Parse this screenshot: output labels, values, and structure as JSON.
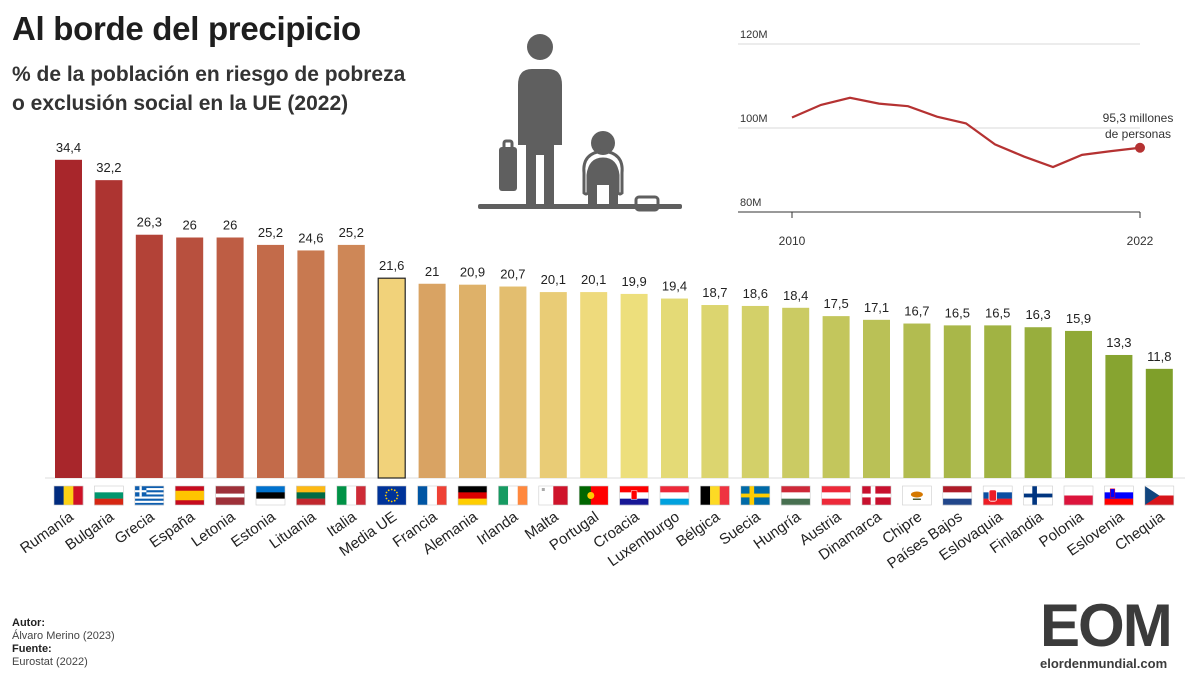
{
  "header": {
    "title": "Al borde del precipicio",
    "subtitle_line1": "% de la población en riesgo de pobreza",
    "subtitle_line2": "o exclusión social en la UE (2022)"
  },
  "credits": {
    "author_label": "Autor:",
    "author": "Álvaro Merino (2023)",
    "source_label": "Fuente:",
    "source": "Eurostat (2022)"
  },
  "logo": {
    "mark": "EOM",
    "url": "elordenmundial.com"
  },
  "colors": {
    "high": "#a8262b",
    "mid": "#f1e17f",
    "low": "#7f9f2a",
    "eu_average": "#f1d27a",
    "inset_line": "#b53232"
  },
  "chart_data": [
    {
      "type": "bar",
      "categories": [
        "Rumanía",
        "Bulgaria",
        "Grecia",
        "España",
        "Letonia",
        "Estonia",
        "Lituania",
        "Italia",
        "Media UE",
        "Francia",
        "Alemania",
        "Irlanda",
        "Malta",
        "Portugal",
        "Croacia",
        "Luxemburgo",
        "Bélgica",
        "Suecia",
        "Hungría",
        "Austria",
        "Dinamarca",
        "Chipre",
        "Países Bajos",
        "Eslovaquia",
        "Finlandia",
        "Polonia",
        "Eslovenia",
        "Chequia"
      ],
      "values": [
        34.4,
        32.2,
        26.3,
        26,
        26,
        25.2,
        24.6,
        25.2,
        21.6,
        21,
        20.9,
        20.7,
        20.1,
        20.1,
        19.9,
        19.4,
        18.7,
        18.6,
        18.4,
        17.5,
        17.1,
        16.7,
        16.5,
        16.5,
        16.3,
        15.9,
        13.3,
        11.8
      ],
      "value_labels": [
        "34,4",
        "32,2",
        "26,3",
        "26",
        "26",
        "25,2",
        "24,6",
        "25,2",
        "21,6",
        "21",
        "20,9",
        "20,7",
        "20,1",
        "20,1",
        "19,9",
        "19,4",
        "18,7",
        "18,6",
        "18,4",
        "17,5",
        "17,1",
        "16,7",
        "16,5",
        "16,5",
        "16,3",
        "15,9",
        "13,3",
        "11,8"
      ],
      "highlight": "Media UE",
      "flags": [
        "romania-flag",
        "bulgaria-flag",
        "greece-flag",
        "spain-flag",
        "latvia-flag",
        "estonia-flag",
        "lithuania-flag",
        "italy-flag",
        "eu-flag",
        "france-flag",
        "germany-flag",
        "ireland-flag",
        "malta-flag",
        "portugal-flag",
        "croatia-flag",
        "luxembourg-flag",
        "belgium-flag",
        "sweden-flag",
        "hungary-flag",
        "austria-flag",
        "denmark-flag",
        "cyprus-flag",
        "netherlands-flag",
        "slovakia-flag",
        "finland-flag",
        "poland-flag",
        "slovenia-flag",
        "czechia-flag"
      ],
      "ylim": [
        0,
        36
      ],
      "grid": false,
      "title": "% de la población en riesgo de pobreza o exclusión social en la UE (2022)"
    },
    {
      "type": "line",
      "x": [
        2010,
        2011,
        2012,
        2013,
        2014,
        2015,
        2016,
        2017,
        2018,
        2019,
        2020,
        2021,
        2022
      ],
      "values": [
        102.5,
        105.5,
        107.2,
        105.8,
        105.2,
        102.7,
        101.1,
        96.1,
        93.2,
        90.7,
        93.6,
        94.5,
        95.3
      ],
      "x_ticks": [
        "2010",
        "2022"
      ],
      "y_ticks": [
        "120M",
        "100M",
        "80M"
      ],
      "y_tick_values": [
        120,
        100,
        80
      ],
      "ylim": [
        80,
        120
      ],
      "annotation_line1": "95,3 millones",
      "annotation_line2": "de personas",
      "grid": true
    }
  ]
}
